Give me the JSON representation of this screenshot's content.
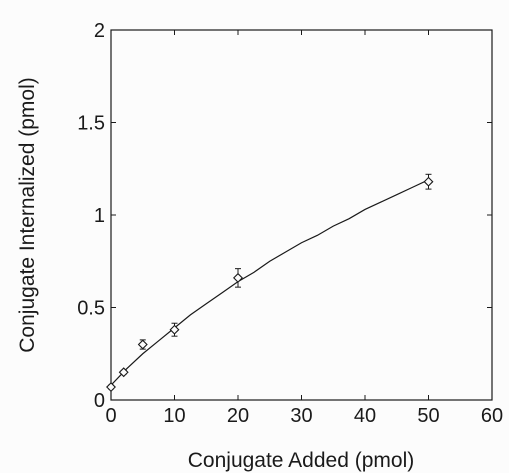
{
  "chart_data": {
    "type": "scatter",
    "title": "",
    "xlabel": "Conjugate Added (pmol)",
    "ylabel": "Conjugate Internalized (pmol)",
    "xlim": [
      0,
      60
    ],
    "ylim": [
      0,
      2
    ],
    "xticks": [
      0,
      10,
      20,
      30,
      40,
      50,
      60
    ],
    "yticks": [
      0,
      0.5,
      1,
      1.5,
      2
    ],
    "xtick_labels": [
      "0",
      "10",
      "20",
      "30",
      "40",
      "50",
      "60"
    ],
    "ytick_labels": [
      "0",
      "0.5",
      "1",
      "1.5",
      "2"
    ],
    "grid": false,
    "legend": false,
    "marker": "diamond-open",
    "colors": {
      "ink": "#1a1a1a",
      "background": "#fcfcfc"
    },
    "series": [
      {
        "points": [
          {
            "x": 0,
            "y": 0.07,
            "err": 0.01
          },
          {
            "x": 2,
            "y": 0.15,
            "err": 0.01
          },
          {
            "x": 5,
            "y": 0.3,
            "err": 0.025
          },
          {
            "x": 10,
            "y": 0.38,
            "err": 0.035
          },
          {
            "x": 20,
            "y": 0.66,
            "err": 0.05
          },
          {
            "x": 50,
            "y": 1.18,
            "err": 0.04
          }
        ]
      }
    ],
    "fit_curve": {
      "x": [
        0,
        2.5,
        5,
        7.5,
        10,
        12.5,
        15,
        17.5,
        20,
        22.5,
        25,
        27.5,
        30,
        32.5,
        35,
        37.5,
        40,
        42.5,
        45,
        47.5,
        50
      ],
      "y": [
        0.08,
        0.17,
        0.25,
        0.32,
        0.39,
        0.46,
        0.52,
        0.58,
        0.64,
        0.69,
        0.75,
        0.8,
        0.85,
        0.89,
        0.94,
        0.98,
        1.03,
        1.07,
        1.11,
        1.15,
        1.19
      ]
    }
  }
}
